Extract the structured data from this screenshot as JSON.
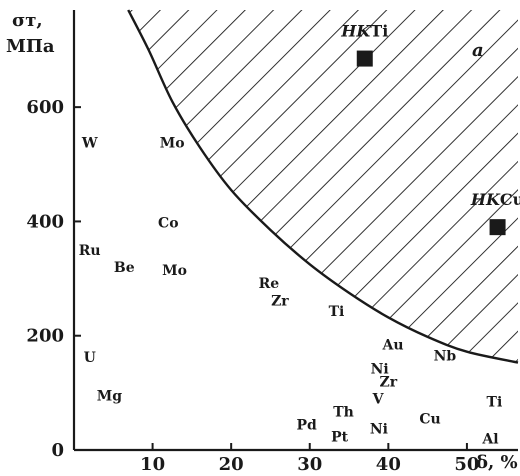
{
  "chart_data": {
    "type": "scatter",
    "title": "",
    "xlabel": "δ, %",
    "ylabel": "σт,",
    "ylabel_unit": "МПа",
    "xlim": [
      0,
      56.5
    ],
    "ylim": [
      0,
      770
    ],
    "x_ticks": [
      10,
      20,
      30,
      40,
      50
    ],
    "y_ticks": [
      0,
      200,
      400,
      600
    ],
    "region_label": "a",
    "region_boundary": [
      [
        6.9,
        770
      ],
      [
        9.5,
        700
      ],
      [
        12.5,
        610
      ],
      [
        16,
        530
      ],
      [
        20,
        455
      ],
      [
        25,
        385
      ],
      [
        30,
        325
      ],
      [
        35,
        275
      ],
      [
        40,
        232
      ],
      [
        45,
        198
      ],
      [
        50,
        172
      ],
      [
        56.5,
        153
      ]
    ],
    "points": [
      {
        "label": "W",
        "x": 2.0,
        "y": 538
      },
      {
        "label": "Mo",
        "x": 12.5,
        "y": 538
      },
      {
        "label": "Co",
        "x": 12.0,
        "y": 398
      },
      {
        "label": "Ru",
        "x": 2.0,
        "y": 350
      },
      {
        "label": "Be",
        "x": 6.4,
        "y": 320
      },
      {
        "label": "Mo",
        "x": 12.8,
        "y": 315
      },
      {
        "label": "Re",
        "x": 24.8,
        "y": 292
      },
      {
        "label": "Zr",
        "x": 26.2,
        "y": 262
      },
      {
        "label": "Ti",
        "x": 33.4,
        "y": 243
      },
      {
        "label": "Au",
        "x": 40.6,
        "y": 185
      },
      {
        "label": "Nb",
        "x": 47.2,
        "y": 165
      },
      {
        "label": "Ni",
        "x": 38.9,
        "y": 143
      },
      {
        "label": "Zr",
        "x": 40.0,
        "y": 120
      },
      {
        "label": "U",
        "x": 2.0,
        "y": 163
      },
      {
        "label": "Mg",
        "x": 4.5,
        "y": 95
      },
      {
        "label": "V",
        "x": 38.7,
        "y": 90
      },
      {
        "label": "Th",
        "x": 34.3,
        "y": 67
      },
      {
        "label": "Cu",
        "x": 45.3,
        "y": 55
      },
      {
        "label": "Ti",
        "x": 53.5,
        "y": 85
      },
      {
        "label": "Pd",
        "x": 29.6,
        "y": 45
      },
      {
        "label": "Ni",
        "x": 38.8,
        "y": 38
      },
      {
        "label": "Pt",
        "x": 33.8,
        "y": 24
      },
      {
        "label": "Al",
        "x": 53.0,
        "y": 20
      }
    ],
    "highlighted": [
      {
        "label_italic": "HK",
        "label_rest": "Ti",
        "x": 37.0,
        "y": 685
      },
      {
        "label_italic": "HK",
        "label_rest": "Cu",
        "x": 53.9,
        "y": 390
      }
    ]
  }
}
